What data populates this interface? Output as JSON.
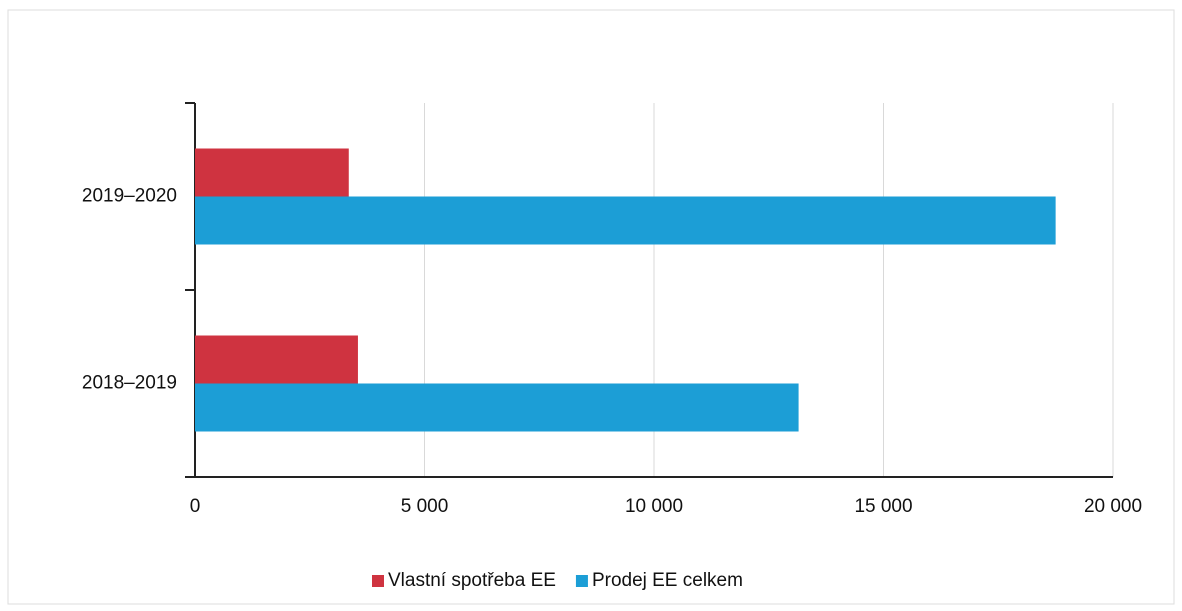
{
  "chart_data": {
    "type": "barh",
    "categories": [
      "2019–2020",
      "2018–2019"
    ],
    "series": [
      {
        "name": "Vlastní spotřeba EE",
        "color": "#cf3340",
        "values": [
          3350,
          3550
        ]
      },
      {
        "name": "Prodej EE celkem",
        "color": "#1c9ed6",
        "values": [
          18750,
          13150
        ]
      }
    ],
    "xlim": [
      0,
      20000
    ],
    "xticks": [
      0,
      {
        "value": 5000,
        "label": "5 000"
      },
      {
        "value": 10000,
        "label": "10 000"
      },
      {
        "value": 15000,
        "label": "15 000"
      },
      {
        "value": 20000,
        "label": "20 000"
      }
    ],
    "grid": true,
    "legend": "bottom"
  }
}
